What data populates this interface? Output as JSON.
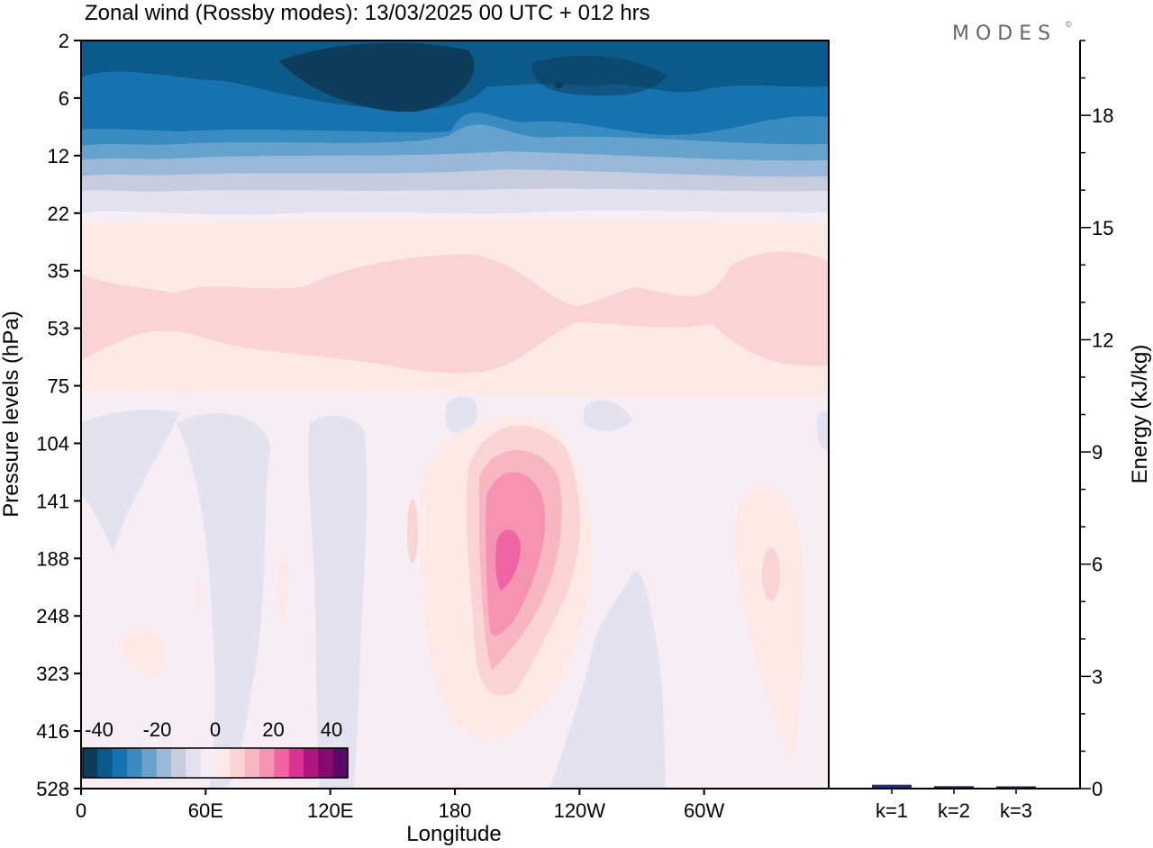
{
  "title": "Zonal wind (Rossby modes):  13/03/2025  00 UTC  + 012 hrs",
  "logo": {
    "text": "MODES",
    "mark": "©"
  },
  "chart_data": [
    {
      "type": "heatmap",
      "title": "Zonal wind (Rossby modes):  13/03/2025  00 UTC  + 012 hrs",
      "xlabel": "Longitude",
      "ylabel": "Pressure levels (hPa)",
      "x_ticks": [
        {
          "lon": 0,
          "label": "0"
        },
        {
          "lon": 60,
          "label": "60E"
        },
        {
          "lon": 120,
          "label": "120E"
        },
        {
          "lon": 180,
          "label": "180"
        },
        {
          "lon": 240,
          "label": "120W"
        },
        {
          "lon": 300,
          "label": "60W"
        }
      ],
      "xlim": [
        0,
        360
      ],
      "y_levels": [
        "2",
        "6",
        "12",
        "22",
        "35",
        "53",
        "75",
        "104",
        "141",
        "188",
        "248",
        "323",
        "416",
        "528"
      ],
      "colorbar": {
        "labels": [
          "-40",
          "-20",
          "0",
          "20",
          "40"
        ],
        "colors": [
          "#0e3d5c",
          "#0b5a8a",
          "#1673b0",
          "#3a8bbf",
          "#67a2cc",
          "#9ab8d7",
          "#c7ccdf",
          "#e3e2ee",
          "#f6eef4",
          "#fde9e6",
          "#fad4d4",
          "#f8b6c3",
          "#f693b3",
          "#ef65a3",
          "#d83592",
          "#b0177e",
          "#85096e",
          "#5a0a66"
        ]
      },
      "fields": [
        {
          "name": "strat_easterlies",
          "lon_center": 150,
          "p_center": 4,
          "value": -40
        },
        {
          "name": "jet_core",
          "lon_center": 200,
          "p_center": 190,
          "value": 25
        },
        {
          "name": "weak_westerly_band",
          "lon_center": 180,
          "p_center": 45,
          "value": 5
        },
        {
          "name": "trop_westerly_patch",
          "lon_center": 330,
          "p_center": 200,
          "value": 5
        }
      ]
    },
    {
      "type": "bar",
      "ylabel": "Energy (kJ/kg)",
      "ylim": [
        0,
        20
      ],
      "y_ticks": [
        "0",
        "3",
        "6",
        "9",
        "12",
        "15",
        "18"
      ],
      "categories": [
        "k=1",
        "k=2",
        "k=3"
      ],
      "values": [
        0.08,
        0.04,
        0.02
      ]
    }
  ]
}
